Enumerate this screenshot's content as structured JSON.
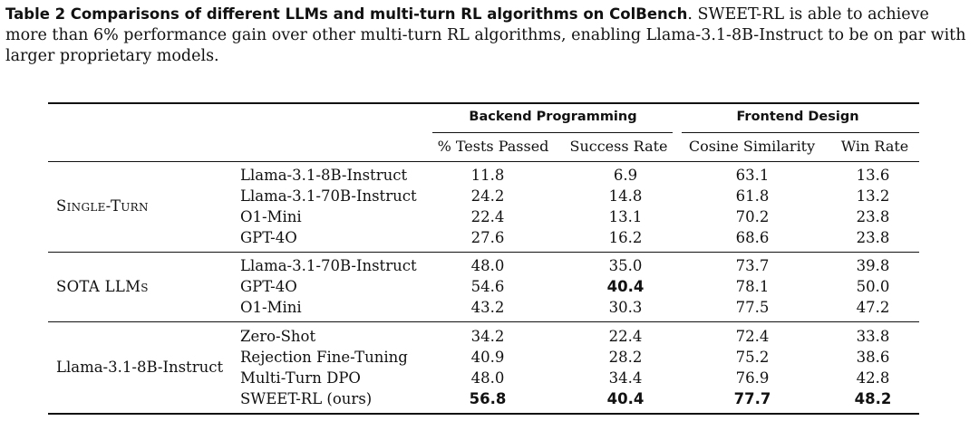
{
  "caption": {
    "label": "Table 2",
    "title": "Comparisons of different LLMs and multi-turn RL algorithms on ColBench",
    "text": "SWEET-RL is able to achieve more than 6% performance gain over other multi-turn RL algorithms, enabling Llama-3.1-8B-Instruct to be on par with larger proprietary models."
  },
  "header": {
    "group1": "Backend Programming",
    "group2": "Frontend Design",
    "columns": [
      "% Tests Passed",
      "Success Rate",
      "Cosine Similarity",
      "Win Rate"
    ]
  },
  "groups": [
    {
      "label": "Single-Turn",
      "rows": [
        {
          "model": "Llama-3.1-8B-Instruct",
          "v": [
            "11.8",
            "6.9",
            "63.1",
            "13.6"
          ],
          "bold": [
            false,
            false,
            false,
            false
          ]
        },
        {
          "model": "Llama-3.1-70B-Instruct",
          "v": [
            "24.2",
            "14.8",
            "61.8",
            "13.2"
          ],
          "bold": [
            false,
            false,
            false,
            false
          ]
        },
        {
          "model": "O1-Mini",
          "v": [
            "22.4",
            "13.1",
            "70.2",
            "23.8"
          ],
          "bold": [
            false,
            false,
            false,
            false
          ]
        },
        {
          "model": "GPT-4O",
          "v": [
            "27.6",
            "16.2",
            "68.6",
            "23.8"
          ],
          "bold": [
            false,
            false,
            false,
            false
          ]
        }
      ]
    },
    {
      "label": "SOTA LLMs",
      "rows": [
        {
          "model": "Llama-3.1-70B-Instruct",
          "v": [
            "48.0",
            "35.0",
            "73.7",
            "39.8"
          ],
          "bold": [
            false,
            false,
            false,
            false
          ]
        },
        {
          "model": "GPT-4O",
          "v": [
            "54.6",
            "40.4",
            "78.1",
            "50.0"
          ],
          "bold": [
            false,
            true,
            false,
            false
          ]
        },
        {
          "model": "O1-Mini",
          "v": [
            "43.2",
            "30.3",
            "77.5",
            "47.2"
          ],
          "bold": [
            false,
            false,
            false,
            false
          ]
        }
      ]
    },
    {
      "label": "Llama-3.1-8B-Instruct",
      "rows": [
        {
          "model": "Zero-Shot",
          "v": [
            "34.2",
            "22.4",
            "72.4",
            "33.8"
          ],
          "bold": [
            false,
            false,
            false,
            false
          ]
        },
        {
          "model": "Rejection Fine-Tuning",
          "v": [
            "40.9",
            "28.2",
            "75.2",
            "38.6"
          ],
          "bold": [
            false,
            false,
            false,
            false
          ]
        },
        {
          "model": "Multi-Turn DPO",
          "v": [
            "48.0",
            "34.4",
            "76.9",
            "42.8"
          ],
          "bold": [
            false,
            false,
            false,
            false
          ]
        },
        {
          "model": "SWEET-RL (ours)",
          "v": [
            "56.8",
            "40.4",
            "77.7",
            "48.2"
          ],
          "bold": [
            true,
            true,
            true,
            true
          ]
        }
      ]
    }
  ]
}
